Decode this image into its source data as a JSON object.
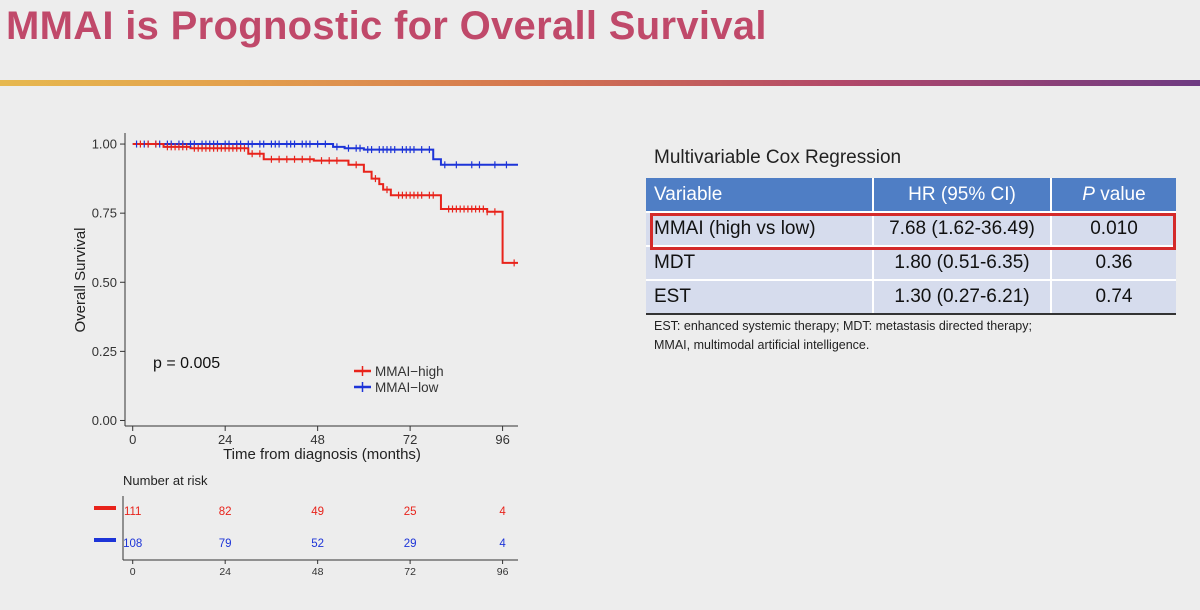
{
  "slide": {
    "title": "MMAI is Prognostic for Overall Survival"
  },
  "chart_data": {
    "type": "line",
    "subtype": "kaplan-meier step plot",
    "xlabel": "Time from diagnosis (months)",
    "ylabel": "Overall Survival",
    "x_ticks": [
      0,
      24,
      48,
      72,
      96
    ],
    "y_ticks": [
      "0.00",
      "0.25",
      "0.50",
      "0.75",
      "1.00"
    ],
    "xlim": [
      -2,
      100
    ],
    "ylim": [
      -0.02,
      1.04
    ],
    "grid": false,
    "annotation": "p = 0.005",
    "legend": {
      "placement": "bottom-right",
      "entries": [
        "MMAI−high",
        "MMAI−low"
      ]
    },
    "series": [
      {
        "name": "MMAI−high",
        "color": "#e8231b",
        "steps": [
          [
            0,
            1.0
          ],
          [
            8,
            0.99
          ],
          [
            15,
            0.985
          ],
          [
            30,
            0.965
          ],
          [
            34,
            0.945
          ],
          [
            47,
            0.94
          ],
          [
            56,
            0.925
          ],
          [
            60,
            0.9
          ],
          [
            62,
            0.875
          ],
          [
            64,
            0.855
          ],
          [
            65,
            0.835
          ],
          [
            67,
            0.815
          ],
          [
            80,
            0.765
          ],
          [
            92,
            0.755
          ],
          [
            96,
            0.57
          ],
          [
            100,
            0.57
          ]
        ],
        "censor_times": [
          2,
          4,
          6,
          9,
          10,
          11,
          12,
          13,
          14,
          16,
          17,
          18,
          19,
          20,
          21,
          22,
          23,
          24,
          25,
          26,
          27,
          28,
          29,
          31,
          33,
          36,
          38,
          40,
          42,
          44,
          46,
          49,
          51,
          53,
          58,
          63,
          66,
          69,
          70,
          71,
          72,
          73,
          74,
          75,
          77,
          78,
          82,
          83,
          84,
          85,
          86,
          87,
          88,
          89,
          90,
          91,
          92,
          94,
          99
        ]
      },
      {
        "name": "MMAI−low",
        "color": "#1d34d8",
        "steps": [
          [
            0,
            1.0
          ],
          [
            52,
            0.99
          ],
          [
            55,
            0.985
          ],
          [
            60,
            0.98
          ],
          [
            78,
            0.945
          ],
          [
            80,
            0.925
          ],
          [
            100,
            0.925
          ]
        ],
        "censor_times": [
          1,
          3,
          4,
          6,
          7,
          9,
          10,
          12,
          13,
          15,
          16,
          18,
          19,
          20,
          21,
          22,
          24,
          25,
          27,
          28,
          30,
          31,
          33,
          34,
          36,
          37,
          38,
          40,
          41,
          42,
          44,
          45,
          46,
          48,
          50,
          53,
          56,
          58,
          59,
          61,
          62,
          64,
          65,
          66,
          67,
          68,
          70,
          71,
          72,
          73,
          75,
          77,
          81,
          84,
          88,
          90,
          94,
          97
        ]
      }
    ],
    "risk_table": {
      "title": "Number at risk",
      "times": [
        0,
        24,
        48,
        72,
        96
      ],
      "rows": [
        {
          "group": "MMAI−high",
          "color": "#e8231b",
          "counts": [
            "111",
            "82",
            "49",
            "25",
            "4"
          ]
        },
        {
          "group": "MMAI−low",
          "color": "#1d34d8",
          "counts": [
            "108",
            "79",
            "52",
            "29",
            "4"
          ]
        }
      ]
    }
  },
  "cox": {
    "title": "Multivariable Cox Regression",
    "headers": {
      "variable": "Variable",
      "hr": "HR (95% CI)",
      "p_italic": "P",
      "p_rest": " value"
    },
    "rows": [
      {
        "variable": "MMAI (high vs low)",
        "hr": "7.68 (1.62-36.49)",
        "p": "0.010",
        "highlighted": true
      },
      {
        "variable": "MDT",
        "hr": "1.80 (0.51-6.35)",
        "p": "0.36"
      },
      {
        "variable": "EST",
        "hr": "1.30 (0.27-6.21)",
        "p": "0.74"
      }
    ],
    "footnote_line1": "EST: enhanced systemic therapy; MDT: metastasis directed therapy;",
    "footnote_line2": "MMAI, multimodal artificial intelligence.",
    "highlight_color": "#d42a2a"
  }
}
